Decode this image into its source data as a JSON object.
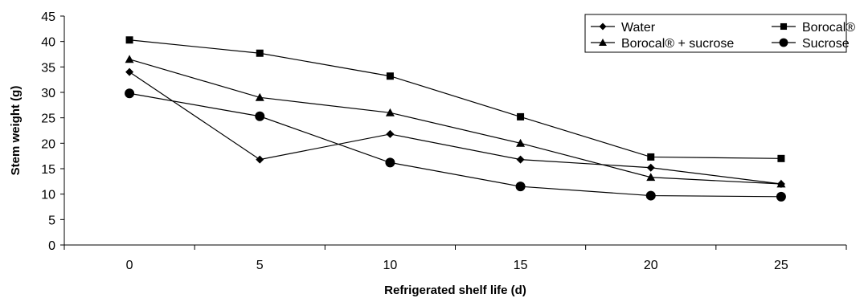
{
  "chart_data": {
    "type": "line",
    "xlabel": "Refrigerated shelf life (d)",
    "ylabel": "Stem weight (g)",
    "x": [
      0,
      5,
      10,
      15,
      20,
      25
    ],
    "x_ticks": [
      "0",
      "5",
      "10",
      "15",
      "20",
      "25"
    ],
    "ylim": [
      0,
      45
    ],
    "y_ticks": [
      "0",
      "5",
      "10",
      "15",
      "20",
      "25",
      "30",
      "35",
      "40",
      "45"
    ],
    "grid": false,
    "legend_position": "top-right",
    "series": [
      {
        "name": "Water",
        "marker": "diamond",
        "values": [
          34.0,
          16.8,
          21.8,
          16.8,
          15.2,
          12.0
        ]
      },
      {
        "name": "Borocal®",
        "marker": "square",
        "values": [
          40.3,
          37.7,
          33.2,
          25.2,
          17.3,
          17.0
        ]
      },
      {
        "name": "Borocal® + sucrose",
        "marker": "triangle",
        "values": [
          36.5,
          29.0,
          26.0,
          20.0,
          13.3,
          12.0
        ]
      },
      {
        "name": "Sucrose",
        "marker": "circle",
        "values": [
          29.8,
          25.3,
          16.2,
          11.5,
          9.7,
          9.5
        ]
      }
    ]
  }
}
